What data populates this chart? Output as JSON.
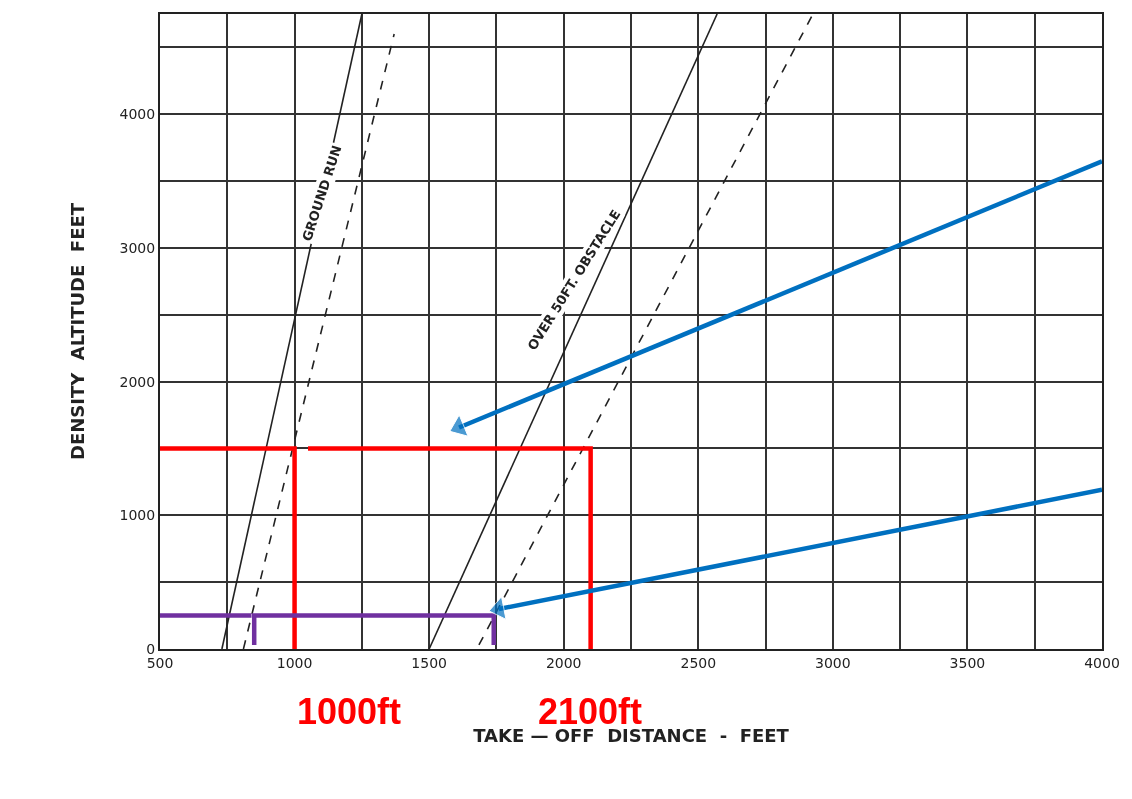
{
  "chart_data": {
    "type": "line",
    "xlabel": "TAKE — OFF  DISTANCE  -  FEET",
    "ylabel": "DENSITY  ALTITUDE  FEET",
    "xlim": [
      500,
      4000
    ],
    "ylim": [
      0,
      4750
    ],
    "xticks": [
      500,
      {
        "value": 750,
        "label": null
      },
      1000,
      {
        "value": 1250,
        "label": null
      },
      1500,
      {
        "value": 1750,
        "label": null
      },
      2000,
      {
        "value": 2250,
        "label": null
      },
      2500,
      {
        "value": 2750,
        "label": null
      },
      3000,
      {
        "value": 3250,
        "label": null
      },
      3500,
      {
        "value": 3750,
        "label": null
      },
      4000
    ],
    "yticks": [
      0,
      {
        "value": 500,
        "label": null
      },
      1000,
      {
        "value": 1500,
        "label": null
      },
      2000,
      {
        "value": 2500,
        "label": null
      },
      3000,
      {
        "value": 3500,
        "label": null
      },
      4000,
      {
        "value": 4500,
        "label": null
      }
    ],
    "grid": true,
    "series": [
      {
        "color": "#222222",
        "line_style": "solid",
        "x": [
          730,
          1250
        ],
        "values": [
          0,
          4750
        ]
      },
      {
        "color": "#222222",
        "line_style": "dashed",
        "x": [
          810,
          1370
        ],
        "values": [
          0,
          4600
        ]
      },
      {
        "color": "#222222",
        "line_style": "solid",
        "x": [
          1500,
          2570
        ],
        "values": [
          0,
          4750
        ]
      },
      {
        "color": "#222222",
        "line_style": "dashed",
        "x": [
          1685,
          2926
        ],
        "values": [
          30,
          4750
        ]
      },
      {
        "color": "#ff0000",
        "line_style": "solid",
        "x": [
          500,
          1000,
          1000
        ],
        "values": [
          1500,
          1500,
          0
        ]
      },
      {
        "color": "#ff0000",
        "line_style": "solid",
        "x": [
          1050,
          2100,
          2100
        ],
        "values": [
          1500,
          1500,
          0
        ]
      },
      {
        "color": "#7030a0",
        "line_style": "solid",
        "x": [
          500,
          840,
          null,
          850,
          850,
          1740,
          1740
        ],
        "values": [
          250,
          250,
          null,
          30,
          250,
          250,
          30
        ]
      },
      {
        "color": "#0070c0",
        "line_style": "solid",
        "marker": "triangle",
        "x": [
          4000,
          1611
        ],
        "values": [
          3648,
          1657
        ]
      },
      {
        "color": "#0070c0",
        "line_style": "solid",
        "marker": "triangle",
        "x": [
          4000,
          1759
        ],
        "values": [
          1191,
          299
        ]
      }
    ],
    "annotations": [
      "GROUND RUN",
      "OVER 50FT. OBSTACLE",
      "1000ft",
      "2100ft"
    ]
  }
}
